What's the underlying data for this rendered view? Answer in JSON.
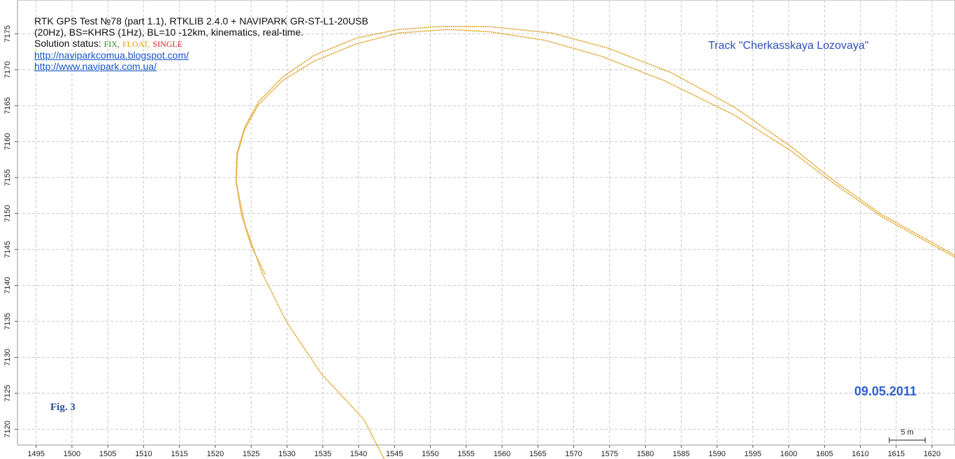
{
  "chart_data": {
    "type": "line",
    "title": "RTK GPS Test №78 (part 1.1), RTKLIB 2.4.0 + NAVIPARK GR-ST-L1-20USB",
    "subtitle": "(20Hz), BS=KHRS (1Hz), BL=10 -12km, kinematics, real-time.",
    "status_label": "Solution status:",
    "status_items": [
      {
        "text": "FIX,",
        "color": "#2a8a2a"
      },
      {
        "text": "FLOAT,",
        "color": "#e8a000"
      },
      {
        "text": "SINGLE",
        "color": "#d42020"
      }
    ],
    "links": [
      "http://naviparkcomua.blogspot.com/",
      "http://www.navipark.com.ua/"
    ],
    "track_name": "Track \"Cherkasskaya Lozovaya\"",
    "date": "09.05.2011",
    "figure": "Fig. 3",
    "scale_bar": {
      "label": "5 m",
      "length": 5
    },
    "grid": true,
    "xlim": [
      1492.4,
      1623.2
    ],
    "ylim": [
      7117.8,
      7179.7
    ],
    "xticks": [
      1495,
      1500,
      1505,
      1510,
      1515,
      1520,
      1525,
      1530,
      1535,
      1540,
      1545,
      1550,
      1555,
      1560,
      1565,
      1570,
      1575,
      1580,
      1585,
      1590,
      1595,
      1600,
      1605,
      1610,
      1615,
      1620
    ],
    "yticks": [
      7120,
      7125,
      7130,
      7135,
      7140,
      7145,
      7150,
      7155,
      7160,
      7165,
      7170,
      7175
    ],
    "series": [
      {
        "color": "#e0a020",
        "x": [
          1543.6,
          1540.7,
          1534.8,
          1529.9,
          1526.5,
          1524.1,
          1522.9,
          1523.1,
          1524.1,
          1526.0,
          1529.4,
          1533.8,
          1539.7,
          1545.5,
          1552.4,
          1558.2,
          1566.0,
          1573.8,
          1582.6,
          1592.4,
          1600.2,
          1606.0,
          1612.9,
          1623.2
        ],
        "values": [
          7115.8,
          7121.4,
          7127.7,
          7135.0,
          7141.8,
          7148.6,
          7154.4,
          7158.3,
          7161.7,
          7165.1,
          7168.5,
          7171.2,
          7173.6,
          7175.1,
          7175.6,
          7175.3,
          7174.1,
          7171.9,
          7168.5,
          7163.7,
          7158.8,
          7154.4,
          7149.6,
          7143.9
        ]
      },
      {
        "color": "#e0a020",
        "x": [
          1623.2,
          1612.9,
          1606.0,
          1600.2,
          1592.4,
          1583.6,
          1574.8,
          1567.0,
          1558.2,
          1551.4,
          1545.5,
          1539.7,
          1533.8,
          1529.4,
          1526.0,
          1524.1,
          1523.0,
          1522.9,
          1523.6,
          1525.0,
          1527.0
        ],
        "values": [
          7144.2,
          7149.9,
          7154.8,
          7159.4,
          7164.8,
          7169.6,
          7173.0,
          7175.1,
          7176.0,
          7176.0,
          7175.6,
          7174.4,
          7172.0,
          7169.0,
          7165.5,
          7162.0,
          7158.3,
          7154.6,
          7150.0,
          7145.5,
          7141.5
        ]
      }
    ]
  }
}
